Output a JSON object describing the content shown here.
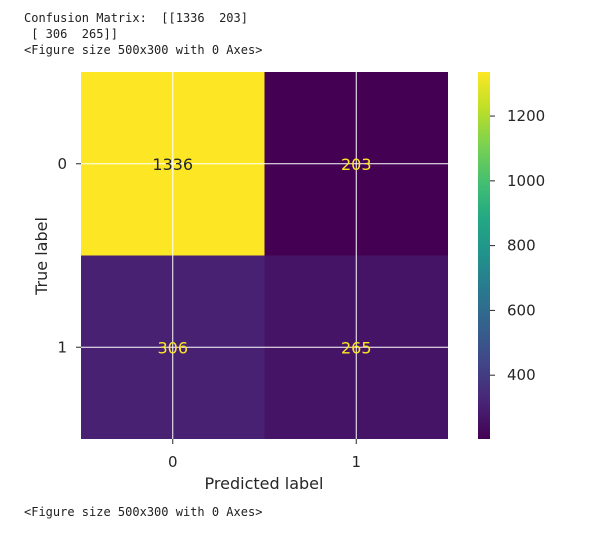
{
  "output": {
    "top_lines": [
      "Confusion Matrix:  [[1336  203]",
      " [ 306  265]]",
      "<Figure size 500x300 with 0 Axes>"
    ],
    "bottom_line": "<Figure size 500x300 with 0 Axes>"
  },
  "chart_data": {
    "type": "heatmap",
    "title": "",
    "xlabel": "Predicted label",
    "ylabel": "True label",
    "x_categories": [
      "0",
      "1"
    ],
    "y_categories": [
      "0",
      "1"
    ],
    "values": [
      [
        1336,
        203
      ],
      [
        306,
        265
      ]
    ],
    "colormap": "viridis",
    "colorbar": {
      "range": [
        203,
        1336
      ],
      "ticks": [
        400,
        600,
        800,
        1000,
        1200
      ]
    },
    "grid": true,
    "colors": {
      "dark_text": "#262626",
      "light_text": "#fde725"
    }
  }
}
